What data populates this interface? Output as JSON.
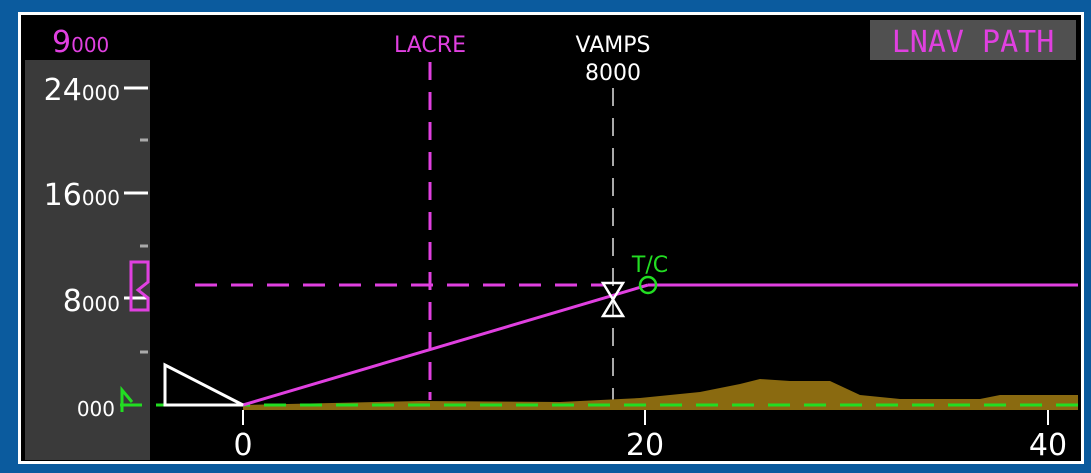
{
  "selected_altitude": {
    "major": "9",
    "minor": "000"
  },
  "mode": "LNAV PATH",
  "altitude_scale": [
    {
      "major": "24",
      "minor": "000"
    },
    {
      "major": "16",
      "minor": "000"
    },
    {
      "major": "8",
      "minor": "000"
    },
    {
      "minor": "000"
    }
  ],
  "distance_scale": [
    "0",
    "20",
    "40"
  ],
  "waypoints": [
    {
      "name": "LACRE"
    },
    {
      "name": "VAMPS",
      "altitude": "8000"
    }
  ],
  "top_of_climb": "T/C"
}
